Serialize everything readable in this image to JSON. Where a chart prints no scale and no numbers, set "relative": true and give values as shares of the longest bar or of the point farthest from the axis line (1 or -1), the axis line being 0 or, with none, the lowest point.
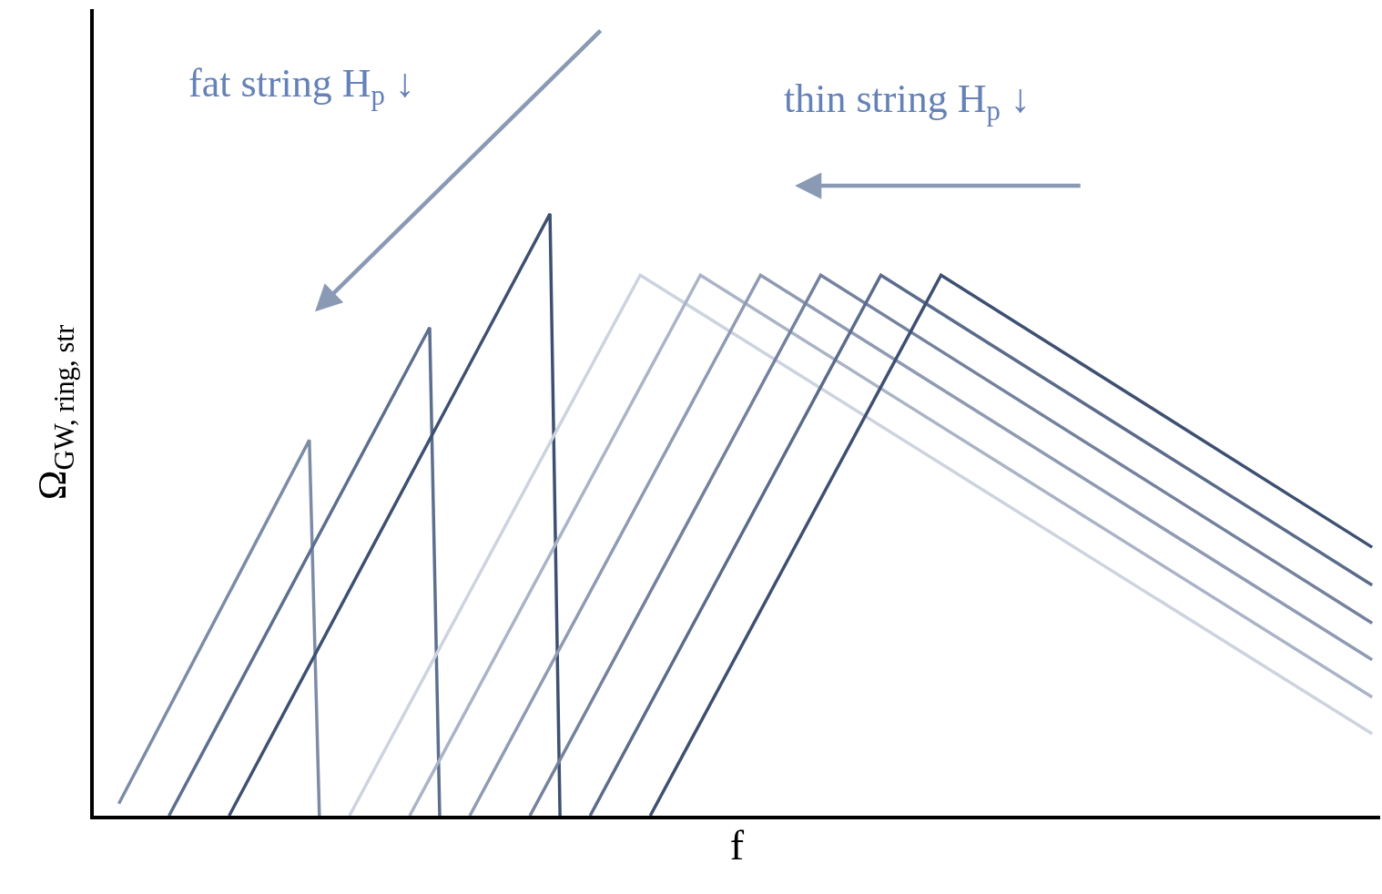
{
  "chart_data": {
    "type": "line",
    "relative": true,
    "xlabel": "f",
    "ylabel": "Ω$_{GW, ring, str}$",
    "annotations": [
      "fat string H$_{p}$ ↓",
      "thin string H$_{p}$ ↓"
    ],
    "tick_labels": false,
    "marker": "none",
    "line_style": "solid",
    "categories": [
      null,
      null,
      null,
      null,
      null,
      null,
      null,
      null,
      null,
      null,
      null,
      null,
      null,
      null,
      null,
      null,
      null,
      null,
      null,
      null,
      null,
      null,
      null,
      null,
      null,
      null,
      null,
      null,
      null,
      null,
      null,
      null,
      null,
      null,
      null,
      null,
      null,
      null,
      null,
      null,
      null,
      null,
      null,
      null,
      null,
      null,
      null,
      null,
      null,
      null,
      null,
      null,
      null,
      null,
      null,
      null,
      null,
      null,
      null,
      null,
      null,
      null,
      null,
      null,
      null,
      null,
      null,
      null,
      null,
      null,
      null,
      null,
      null,
      null,
      null,
      null,
      null,
      null,
      null,
      null,
      null,
      null,
      null,
      null,
      null,
      null,
      null,
      null,
      null,
      null,
      null,
      null,
      null,
      null,
      null,
      null,
      null,
      null,
      null,
      null,
      null,
      null,
      null,
      null,
      null,
      null,
      null,
      null,
      null,
      null,
      null,
      null,
      null,
      null,
      null,
      null,
      null,
      null,
      null,
      null,
      null,
      null,
      null,
      null,
      null,
      null
    ],
    "series": [
      {
        "color": "#7d8ca6",
        "values": [
          0.02,
          null,
          null,
          null,
          null,
          null,
          null,
          null,
          null,
          null,
          null,
          null,
          null,
          null,
          null,
          null,
          null,
          null,
          null,
          0.624,
          0,
          null,
          null,
          null,
          null,
          null,
          null,
          null,
          null,
          null,
          null,
          null,
          null,
          null,
          null,
          null,
          null,
          null,
          null,
          null,
          null,
          null,
          null,
          null,
          null,
          null,
          null,
          null,
          null,
          null,
          null,
          null,
          null,
          null,
          null,
          null,
          null,
          null,
          null,
          null,
          null,
          null,
          null,
          null,
          null,
          null,
          null,
          null,
          null,
          null,
          null,
          null,
          null,
          null,
          null,
          null,
          null,
          null,
          null,
          null,
          null,
          null,
          null,
          null,
          null,
          null,
          null,
          null,
          null,
          null,
          null,
          null,
          null,
          null,
          null,
          null,
          null,
          null,
          null,
          null,
          null,
          null,
          null,
          null,
          null,
          null,
          null,
          null,
          null,
          null,
          null,
          null,
          null,
          null,
          null,
          null,
          null,
          null,
          null,
          null,
          null,
          null,
          null,
          null,
          null,
          null
        ]
      },
      {
        "color": "#5d6f8f",
        "values": [
          null,
          null,
          null,
          null,
          null,
          0,
          null,
          null,
          null,
          null,
          null,
          null,
          null,
          null,
          null,
          null,
          null,
          null,
          null,
          null,
          null,
          null,
          null,
          null,
          null,
          null,
          null,
          null,
          null,
          null,
          null,
          0.811,
          0,
          null,
          null,
          null,
          null,
          null,
          null,
          null,
          null,
          null,
          null,
          null,
          null,
          null,
          null,
          null,
          null,
          null,
          null,
          null,
          null,
          null,
          null,
          null,
          null,
          null,
          null,
          null,
          null,
          null,
          null,
          null,
          null,
          null,
          null,
          null,
          null,
          null,
          null,
          null,
          null,
          null,
          null,
          null,
          null,
          null,
          null,
          null,
          null,
          null,
          null,
          null,
          null,
          null,
          null,
          null,
          null,
          null,
          null,
          null,
          null,
          null,
          null,
          null,
          null,
          null,
          null,
          null,
          null,
          null,
          null,
          null,
          null,
          null,
          null,
          null,
          null,
          null,
          null,
          null,
          null,
          null,
          null,
          null,
          null,
          null,
          null,
          null,
          null,
          null,
          null,
          null,
          null,
          null
        ]
      },
      {
        "color": "#3e5071",
        "values": [
          null,
          null,
          null,
          null,
          null,
          null,
          null,
          null,
          null,
          null,
          null,
          0,
          null,
          null,
          null,
          null,
          null,
          null,
          null,
          null,
          null,
          null,
          null,
          null,
          null,
          null,
          null,
          null,
          null,
          null,
          null,
          null,
          null,
          null,
          null,
          null,
          null,
          null,
          null,
          null,
          null,
          null,
          null,
          1,
          0,
          null,
          null,
          null,
          null,
          null,
          null,
          null,
          null,
          null,
          null,
          null,
          null,
          null,
          null,
          null,
          null,
          null,
          null,
          null,
          null,
          null,
          null,
          null,
          null,
          null,
          null,
          null,
          null,
          null,
          null,
          null,
          null,
          null,
          null,
          null,
          null,
          null,
          null,
          null,
          null,
          null,
          null,
          null,
          null,
          null,
          null,
          null,
          null,
          null,
          null,
          null,
          null,
          null,
          null,
          null,
          null,
          null,
          null,
          null,
          null,
          null,
          null,
          null,
          null,
          null,
          null,
          null,
          null,
          null,
          null,
          null,
          null,
          null,
          null,
          null,
          null,
          null,
          null,
          null,
          null,
          null
        ]
      },
      {
        "color": "#cdd3df",
        "values": [
          null,
          null,
          null,
          null,
          null,
          null,
          null,
          null,
          null,
          null,
          null,
          null,
          null,
          null,
          null,
          null,
          null,
          null,
          null,
          null,
          null,
          null,
          null,
          0,
          null,
          null,
          null,
          null,
          null,
          null,
          null,
          null,
          null,
          null,
          null,
          null,
          null,
          null,
          null,
          null,
          null,
          null,
          null,
          null,
          null,
          null,
          null,
          null,
          null,
          null,
          null,
          null,
          0.898,
          null,
          null,
          null,
          null,
          null,
          null,
          null,
          null,
          null,
          null,
          null,
          null,
          null,
          null,
          null,
          null,
          null,
          null,
          null,
          null,
          null,
          null,
          null,
          null,
          null,
          null,
          null,
          null,
          null,
          null,
          null,
          null,
          null,
          null,
          null,
          null,
          null,
          null,
          null,
          null,
          null,
          null,
          null,
          null,
          null,
          null,
          null,
          null,
          null,
          null,
          null,
          null,
          null,
          null,
          null,
          null,
          null,
          null,
          null,
          null,
          null,
          null,
          null,
          null,
          null,
          null,
          null,
          null,
          null,
          null,
          null,
          null,
          0.136
        ]
      },
      {
        "color": "#aab4c6",
        "values": [
          null,
          null,
          null,
          null,
          null,
          null,
          null,
          null,
          null,
          null,
          null,
          null,
          null,
          null,
          null,
          null,
          null,
          null,
          null,
          null,
          null,
          null,
          null,
          null,
          null,
          null,
          null,
          null,
          null,
          0,
          null,
          null,
          null,
          null,
          null,
          null,
          null,
          null,
          null,
          null,
          null,
          null,
          null,
          null,
          null,
          null,
          null,
          null,
          null,
          null,
          null,
          null,
          null,
          null,
          null,
          null,
          null,
          null,
          0.898,
          null,
          null,
          null,
          null,
          null,
          null,
          null,
          null,
          null,
          null,
          null,
          null,
          null,
          null,
          null,
          null,
          null,
          null,
          null,
          null,
          null,
          null,
          null,
          null,
          null,
          null,
          null,
          null,
          null,
          null,
          null,
          null,
          null,
          null,
          null,
          null,
          null,
          null,
          null,
          null,
          null,
          null,
          null,
          null,
          null,
          null,
          null,
          null,
          null,
          null,
          null,
          null,
          null,
          null,
          null,
          null,
          null,
          null,
          null,
          null,
          null,
          null,
          null,
          null,
          null,
          null,
          0.197
        ]
      },
      {
        "color": "#8f9bb2",
        "values": [
          null,
          null,
          null,
          null,
          null,
          null,
          null,
          null,
          null,
          null,
          null,
          null,
          null,
          null,
          null,
          null,
          null,
          null,
          null,
          null,
          null,
          null,
          null,
          null,
          null,
          null,
          null,
          null,
          null,
          null,
          null,
          null,
          null,
          null,
          null,
          0,
          null,
          null,
          null,
          null,
          null,
          null,
          null,
          null,
          null,
          null,
          null,
          null,
          null,
          null,
          null,
          null,
          null,
          null,
          null,
          null,
          null,
          null,
          null,
          null,
          null,
          null,
          null,
          null,
          0.898,
          null,
          null,
          null,
          null,
          null,
          null,
          null,
          null,
          null,
          null,
          null,
          null,
          null,
          null,
          null,
          null,
          null,
          null,
          null,
          null,
          null,
          null,
          null,
          null,
          null,
          null,
          null,
          null,
          null,
          null,
          null,
          null,
          null,
          null,
          null,
          null,
          null,
          null,
          null,
          null,
          null,
          null,
          null,
          null,
          null,
          null,
          null,
          null,
          null,
          null,
          null,
          null,
          null,
          null,
          null,
          null,
          null,
          null,
          null,
          null,
          0.259
        ]
      },
      {
        "color": "#74829e",
        "values": [
          null,
          null,
          null,
          null,
          null,
          null,
          null,
          null,
          null,
          null,
          null,
          null,
          null,
          null,
          null,
          null,
          null,
          null,
          null,
          null,
          null,
          null,
          null,
          null,
          null,
          null,
          null,
          null,
          null,
          null,
          null,
          null,
          null,
          null,
          null,
          null,
          null,
          null,
          null,
          null,
          null,
          0,
          null,
          null,
          null,
          null,
          null,
          null,
          null,
          null,
          null,
          null,
          null,
          null,
          null,
          null,
          null,
          null,
          null,
          null,
          null,
          null,
          null,
          null,
          null,
          null,
          null,
          null,
          null,
          null,
          0.898,
          null,
          null,
          null,
          null,
          null,
          null,
          null,
          null,
          null,
          null,
          null,
          null,
          null,
          null,
          null,
          null,
          null,
          null,
          null,
          null,
          null,
          null,
          null,
          null,
          null,
          null,
          null,
          null,
          null,
          null,
          null,
          null,
          null,
          null,
          null,
          null,
          null,
          null,
          null,
          null,
          null,
          null,
          null,
          null,
          null,
          null,
          null,
          null,
          null,
          null,
          null,
          null,
          null,
          null,
          0.32
        ]
      },
      {
        "color": "#5b6b8a",
        "values": [
          null,
          null,
          null,
          null,
          null,
          null,
          null,
          null,
          null,
          null,
          null,
          null,
          null,
          null,
          null,
          null,
          null,
          null,
          null,
          null,
          null,
          null,
          null,
          null,
          null,
          null,
          null,
          null,
          null,
          null,
          null,
          null,
          null,
          null,
          null,
          null,
          null,
          null,
          null,
          null,
          null,
          null,
          null,
          null,
          null,
          null,
          null,
          0,
          null,
          null,
          null,
          null,
          null,
          null,
          null,
          null,
          null,
          null,
          null,
          null,
          null,
          null,
          null,
          null,
          null,
          null,
          null,
          null,
          null,
          null,
          null,
          null,
          null,
          null,
          null,
          null,
          0.898,
          null,
          null,
          null,
          null,
          null,
          null,
          null,
          null,
          null,
          null,
          null,
          null,
          null,
          null,
          null,
          null,
          null,
          null,
          null,
          null,
          null,
          null,
          null,
          null,
          null,
          null,
          null,
          null,
          null,
          null,
          null,
          null,
          null,
          null,
          null,
          null,
          null,
          null,
          null,
          null,
          null,
          null,
          null,
          null,
          null,
          null,
          null,
          null,
          0.383
        ]
      },
      {
        "color": "#3e5071",
        "values": [
          null,
          null,
          null,
          null,
          null,
          null,
          null,
          null,
          null,
          null,
          null,
          null,
          null,
          null,
          null,
          null,
          null,
          null,
          null,
          null,
          null,
          null,
          null,
          null,
          null,
          null,
          null,
          null,
          null,
          null,
          null,
          null,
          null,
          null,
          null,
          null,
          null,
          null,
          null,
          null,
          null,
          null,
          null,
          null,
          null,
          null,
          null,
          null,
          null,
          null,
          null,
          null,
          null,
          0,
          null,
          null,
          null,
          null,
          null,
          null,
          null,
          null,
          null,
          null,
          null,
          null,
          null,
          null,
          null,
          null,
          null,
          null,
          null,
          null,
          null,
          null,
          null,
          null,
          null,
          null,
          null,
          null,
          0.898,
          null,
          null,
          null,
          null,
          null,
          null,
          null,
          null,
          null,
          null,
          null,
          null,
          null,
          null,
          null,
          null,
          null,
          null,
          null,
          null,
          null,
          null,
          null,
          null,
          null,
          null,
          null,
          null,
          null,
          null,
          null,
          null,
          null,
          null,
          null,
          null,
          null,
          null,
          null,
          null,
          null,
          null,
          0.446
        ]
      }
    ]
  }
}
